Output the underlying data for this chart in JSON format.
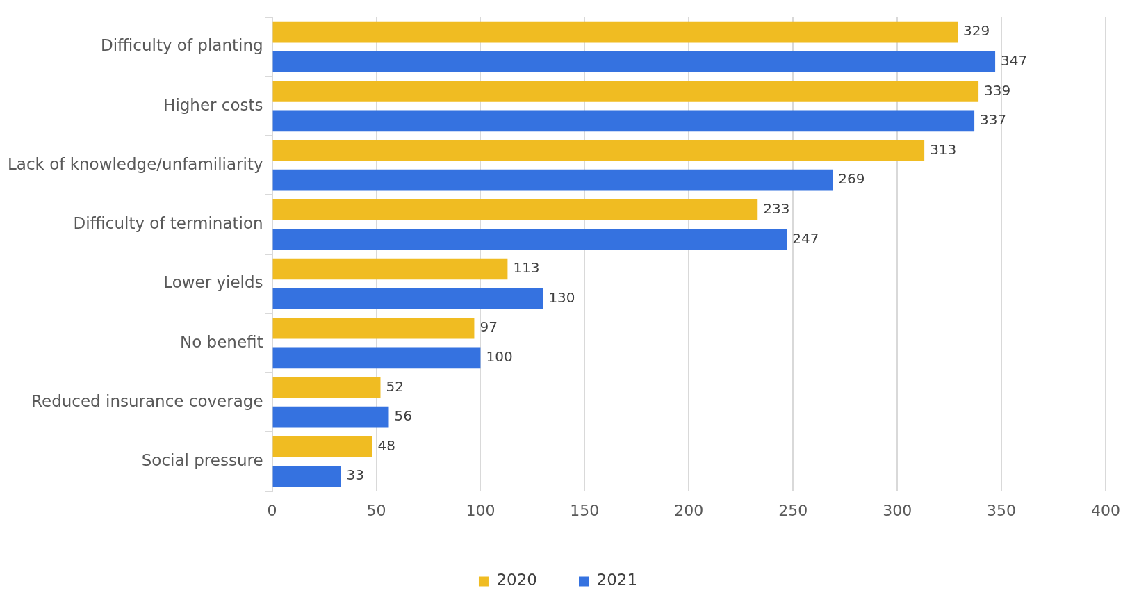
{
  "chart_data": {
    "type": "bar",
    "orientation": "horizontal",
    "categories": [
      "Difficulty of planting",
      "Higher costs",
      "Lack of knowledge/unfamiliarity",
      "Difficulty of termination",
      "Lower yields",
      "No benefit",
      "Reduced insurance coverage",
      "Social pressure"
    ],
    "series": [
      {
        "name": "2020",
        "color": "#f0bc22",
        "values": [
          329,
          339,
          313,
          233,
          113,
          97,
          52,
          48
        ]
      },
      {
        "name": "2021",
        "color": "#3572e0",
        "values": [
          347,
          337,
          269,
          247,
          130,
          100,
          56,
          33
        ]
      }
    ],
    "xlim": [
      0,
      400
    ],
    "xticks": [
      0,
      50,
      100,
      150,
      200,
      250,
      300,
      350,
      400
    ],
    "grid": "x",
    "legend": "bottom",
    "data_labels": true
  }
}
